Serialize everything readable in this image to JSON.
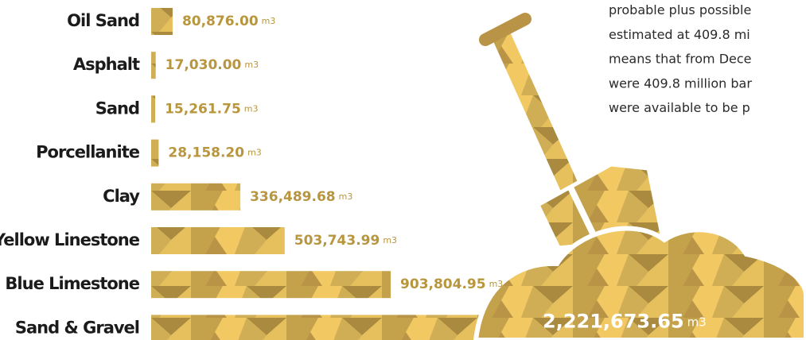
{
  "chart_data": {
    "type": "bar",
    "categories": [
      "Oil Sand",
      "Asphalt",
      "Sand",
      "Porcellanite",
      "Clay",
      "Yellow Linestone",
      "Blue Limestone",
      "Sand & Gravel"
    ],
    "values": [
      80876.0,
      17030.0,
      15261.75,
      28158.2,
      336489.68,
      503743.99,
      903804.95,
      2221673.65
    ],
    "value_labels": [
      "80,876.00",
      "17,030.00",
      "15,261.75",
      "28,158.20",
      "336,489.68",
      "503,743.99",
      "903,804.95",
      "2,221,673.65"
    ],
    "unit": "m3",
    "text_lines": [
      "probable plus possible",
      "estimated at 409.8 mi",
      "means that from Dece",
      "were 409.8 million bar",
      "were available to be p"
    ]
  }
}
